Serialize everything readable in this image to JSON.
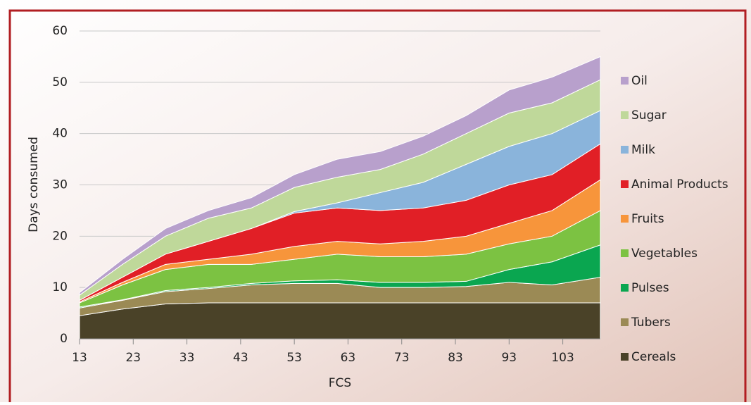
{
  "chart_data": {
    "type": "stacked_area",
    "xlabel": "FCS",
    "ylabel": "Days consumed",
    "x": [
      13,
      21,
      29,
      37,
      45,
      53,
      61,
      69,
      77,
      85,
      93,
      101,
      110
    ],
    "xlim": [
      13,
      110
    ],
    "xticks": [
      13,
      23,
      33,
      43,
      53,
      63,
      73,
      83,
      93,
      103
    ],
    "ylim": [
      0,
      60
    ],
    "yticks": [
      0,
      10,
      20,
      30,
      40,
      50,
      60
    ],
    "grid": true,
    "legend": "right",
    "series": [
      {
        "name": "Cereals",
        "color": "#4a4228",
        "values": [
          4.5,
          5.8,
          6.8,
          7,
          7,
          7,
          7,
          7,
          7,
          7,
          7,
          7,
          7
        ]
      },
      {
        "name": "Tubers",
        "color": "#9b8a55",
        "values": [
          1.5,
          1.7,
          2.4,
          2.8,
          3.5,
          3.8,
          3.8,
          3,
          3,
          3.2,
          4,
          3.5,
          5
        ]
      },
      {
        "name": "Pulses",
        "color": "#0aa650",
        "values": [
          0.2,
          0.1,
          0.2,
          0.2,
          0.3,
          0.5,
          0.7,
          1,
          1,
          1,
          2.5,
          4.5,
          6.3
        ]
      },
      {
        "name": "Vegetables",
        "color": "#7cc242",
        "values": [
          0.8,
          2.9,
          4.1,
          4.5,
          3.7,
          4.2,
          5,
          5,
          5,
          5.3,
          5,
          5,
          6.7
        ]
      },
      {
        "name": "Fruits",
        "color": "#f7953b",
        "values": [
          0.2,
          0.5,
          1,
          1,
          2,
          2.5,
          2.5,
          2.5,
          3,
          3.5,
          4,
          5,
          6
        ]
      },
      {
        "name": "Animal Products",
        "color": "#e11f26",
        "values": [
          0.3,
          1,
          2,
          3.5,
          5,
          6.5,
          6.5,
          6.5,
          6.5,
          7,
          7.5,
          7,
          7
        ]
      },
      {
        "name": "Milk",
        "color": "#8ab4db",
        "values": [
          0,
          0,
          0,
          0,
          0,
          0.3,
          1,
          3.5,
          5,
          7,
          7.5,
          8,
          6.5
        ]
      },
      {
        "name": "Sugar",
        "color": "#bfd89a",
        "values": [
          1,
          2.5,
          3.5,
          4.5,
          4,
          4.7,
          5,
          4.5,
          5.5,
          6,
          6.5,
          6,
          6
        ]
      },
      {
        "name": "Oil",
        "color": "#b8a0cc",
        "values": [
          0.5,
          1,
          1.5,
          1.5,
          2,
          2.5,
          3.5,
          3.5,
          3.5,
          3.5,
          4.5,
          5,
          4.5
        ]
      }
    ]
  }
}
